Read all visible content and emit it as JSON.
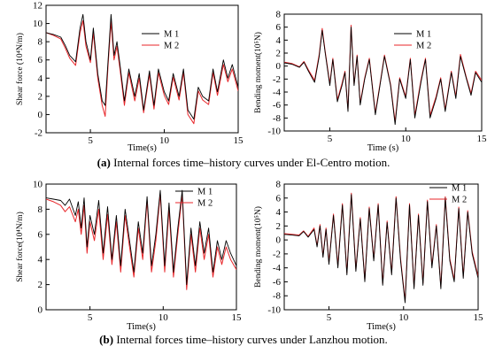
{
  "captions": {
    "a": {
      "label": "(a)",
      "text": " Internal forces time–history curves under El-Centro motion."
    },
    "b": {
      "label": "(b)",
      "text": " Internal forces time–history curves under Lanzhou motion."
    }
  },
  "colors": {
    "M1": "#000000",
    "M2": "#e8262a"
  },
  "chart_data": [
    {
      "id": "elcentro-shear",
      "type": "line",
      "title": "",
      "xlabel": "Time(s)",
      "ylabel": "Shear force (10⁴N/m)",
      "xlim": [
        2,
        15
      ],
      "ylim": [
        -2,
        12
      ],
      "xticks": [
        5,
        10,
        15
      ],
      "yticks": [
        -2,
        0,
        2,
        4,
        6,
        8,
        10,
        12
      ],
      "legend_position": "top-right",
      "grid": false,
      "series": [
        {
          "name": "M 1",
          "x": [
            2,
            2.5,
            3,
            3.3,
            3.6,
            4,
            4.3,
            4.5,
            4.7,
            5,
            5.2,
            5.5,
            5.8,
            6,
            6.2,
            6.4,
            6.6,
            6.8,
            7,
            7.3,
            7.6,
            8,
            8.3,
            8.6,
            9,
            9.3,
            9.6,
            10,
            10.3,
            10.6,
            11,
            11.3,
            11.6,
            12,
            12.3,
            12.6,
            13,
            13.3,
            13.6,
            14,
            14.3,
            14.6,
            15
          ],
          "y": [
            9,
            8.8,
            8.5,
            7.6,
            6.5,
            5.8,
            9.5,
            11,
            8,
            6,
            9.5,
            4.5,
            1.5,
            1,
            6,
            11,
            6.5,
            8,
            5.5,
            1.5,
            5,
            2,
            4.5,
            0.5,
            4.8,
            1,
            5,
            2.5,
            1.5,
            4.5,
            2,
            5,
            0.5,
            -0.5,
            3,
            2,
            1.5,
            5,
            2.5,
            6,
            4,
            5.5,
            3
          ]
        },
        {
          "name": "M 2",
          "x": [
            2,
            2.5,
            3,
            3.3,
            3.6,
            4,
            4.3,
            4.5,
            4.7,
            5,
            5.2,
            5.5,
            5.8,
            6,
            6.2,
            6.4,
            6.6,
            6.8,
            7,
            7.3,
            7.6,
            8,
            8.3,
            8.6,
            9,
            9.3,
            9.6,
            10,
            10.3,
            10.6,
            11,
            11.3,
            11.6,
            12,
            12.3,
            12.6,
            13,
            13.3,
            13.6,
            14,
            14.3,
            14.6,
            15
          ],
          "y": [
            9,
            8.7,
            8.3,
            7.3,
            6.2,
            5.4,
            9,
            10.3,
            7.5,
            5.7,
            9,
            4,
            1,
            -0.2,
            5.5,
            10.2,
            6,
            7.5,
            5,
            1,
            4.6,
            1.5,
            4,
            0.2,
            4.4,
            0.6,
            4.6,
            2.1,
            1.1,
            4.1,
            1.6,
            4.6,
            0,
            -1,
            2.6,
            1.6,
            1.1,
            4.6,
            2.1,
            5.5,
            3.6,
            5,
            2.6
          ]
        }
      ]
    },
    {
      "id": "elcentro-moment",
      "type": "line",
      "title": "",
      "xlabel": "Time (s)",
      "ylabel": "Bending moment(10⁵N)",
      "xlim": [
        2,
        15
      ],
      "ylim": [
        -10,
        8
      ],
      "xticks": [
        5,
        10,
        15
      ],
      "yticks": [
        -10,
        -8,
        -6,
        -4,
        -2,
        0,
        2,
        4,
        6,
        8
      ],
      "legend_position": "top-right",
      "grid": false,
      "series": [
        {
          "name": "M 1",
          "x": [
            2,
            2.5,
            3,
            3.3,
            3.6,
            4,
            4.3,
            4.5,
            4.7,
            5,
            5.2,
            5.5,
            5.8,
            6,
            6.2,
            6.4,
            6.6,
            6.8,
            7,
            7.3,
            7.6,
            8,
            8.3,
            8.6,
            9,
            9.3,
            9.6,
            10,
            10.3,
            10.6,
            11,
            11.3,
            11.6,
            12,
            12.3,
            12.6,
            13,
            13.3,
            13.6,
            14,
            14.3,
            14.6,
            15
          ],
          "y": [
            0.5,
            0.3,
            -0.2,
            0.6,
            -0.8,
            -2.5,
            1.5,
            5.5,
            2,
            -3,
            1,
            -5.5,
            -3,
            -1,
            -7,
            6,
            -3,
            1.5,
            -6,
            -2,
            1,
            -7.5,
            -3,
            1.5,
            -3,
            -9,
            -2,
            -5,
            1,
            -8,
            -2.5,
            1,
            -8,
            -5,
            -2,
            -7,
            -1,
            -5,
            1.5,
            -2,
            -4.5,
            -1,
            -2.5
          ]
        },
        {
          "name": "M 2",
          "x": [
            2,
            2.5,
            3,
            3.3,
            3.6,
            4,
            4.3,
            4.5,
            4.7,
            5,
            5.2,
            5.5,
            5.8,
            6,
            6.2,
            6.4,
            6.6,
            6.8,
            7,
            7.3,
            7.6,
            8,
            8.3,
            8.6,
            9,
            9.3,
            9.6,
            10,
            10.3,
            10.6,
            11,
            11.3,
            11.6,
            12,
            12.3,
            12.6,
            13,
            13.3,
            13.6,
            14,
            14.3,
            14.6,
            15
          ],
          "y": [
            0.6,
            0.4,
            -0.1,
            0.7,
            -0.6,
            -2.2,
            1.8,
            5.8,
            2.2,
            -2.7,
            1.2,
            -5.2,
            -2.7,
            -0.8,
            -6.7,
            6.3,
            -2.8,
            1.7,
            -5.7,
            -1.8,
            1.2,
            -7.2,
            -2.8,
            1.7,
            -2.8,
            -8.6,
            -1.8,
            -4.7,
            1.2,
            -7.6,
            -2.2,
            1.2,
            -7.6,
            -4.7,
            -1.8,
            -6.7,
            -0.8,
            -4.7,
            1.8,
            -1.8,
            -4.2,
            -0.8,
            -2.2
          ]
        }
      ]
    },
    {
      "id": "lanzhou-shear",
      "type": "line",
      "title": "",
      "xlabel": "Time(s)",
      "ylabel": "Shear force(10⁴N/m)",
      "xlim": [
        2,
        15
      ],
      "ylim": [
        0,
        10
      ],
      "xticks": [
        5,
        10,
        15
      ],
      "yticks": [
        0,
        2,
        4,
        6,
        8,
        10
      ],
      "legend_position": "top-right",
      "grid": false,
      "series": [
        {
          "name": "M 1",
          "x": [
            2,
            2.5,
            3,
            3.3,
            3.6,
            4,
            4.2,
            4.4,
            4.6,
            4.8,
            5,
            5.3,
            5.6,
            5.9,
            6.2,
            6.5,
            6.8,
            7.1,
            7.4,
            7.7,
            8,
            8.3,
            8.6,
            8.9,
            9.2,
            9.5,
            9.8,
            10.1,
            10.4,
            10.7,
            11,
            11.3,
            11.6,
            11.9,
            12.2,
            12.5,
            12.8,
            13.1,
            13.4,
            13.7,
            14,
            14.3,
            14.6,
            15
          ],
          "y": [
            8.9,
            8.8,
            8.7,
            8.3,
            8.8,
            7.5,
            8.6,
            6.5,
            8.9,
            5,
            7.5,
            6,
            8.7,
            4.5,
            8.2,
            4,
            7.5,
            3.5,
            8,
            5.5,
            3,
            7,
            4.5,
            9,
            3.5,
            6,
            9.5,
            3.5,
            8.5,
            3,
            6.5,
            9.5,
            2,
            6.5,
            3.5,
            7,
            4.5,
            6.5,
            3,
            5.5,
            4,
            5.5,
            4.5,
            3.5
          ]
        },
        {
          "name": "M 2",
          "x": [
            2,
            2.5,
            3,
            3.3,
            3.6,
            4,
            4.2,
            4.4,
            4.6,
            4.8,
            5,
            5.3,
            5.6,
            5.9,
            6.2,
            6.5,
            6.8,
            7.1,
            7.4,
            7.7,
            8,
            8.3,
            8.6,
            8.9,
            9.2,
            9.5,
            9.8,
            10.1,
            10.4,
            10.7,
            11,
            11.3,
            11.6,
            11.9,
            12.2,
            12.5,
            12.8,
            13.1,
            13.4,
            13.7,
            14,
            14.3,
            14.6,
            15
          ],
          "y": [
            8.8,
            8.6,
            8.3,
            7.8,
            8.2,
            7,
            8,
            6,
            8.3,
            4.5,
            7,
            5.5,
            8,
            4,
            7.6,
            3.6,
            7,
            3,
            7.5,
            5,
            2.6,
            6.5,
            4,
            8.7,
            3,
            5.5,
            9.2,
            3,
            8,
            2.6,
            6,
            9.2,
            1.6,
            6,
            3,
            6.5,
            4,
            6,
            2.6,
            5,
            3.6,
            5,
            4,
            3.2
          ]
        }
      ]
    },
    {
      "id": "lanzhou-moment",
      "type": "line",
      "title": "",
      "xlabel": "Time(s)",
      "ylabel": "Bending moment(10⁵N)",
      "xlim": [
        2,
        15
      ],
      "ylim": [
        -10,
        8
      ],
      "xticks": [
        5,
        10,
        15
      ],
      "yticks": [
        -10,
        -8,
        -6,
        -4,
        -2,
        0,
        2,
        4,
        6,
        8
      ],
      "legend_position": "top-right",
      "grid": false,
      "series": [
        {
          "name": "M 1",
          "x": [
            2,
            2.5,
            3,
            3.3,
            3.6,
            4,
            4.2,
            4.4,
            4.6,
            4.8,
            5,
            5.3,
            5.6,
            5.9,
            6.2,
            6.5,
            6.8,
            7.1,
            7.4,
            7.7,
            8,
            8.3,
            8.6,
            8.9,
            9.2,
            9.5,
            9.8,
            10.1,
            10.4,
            10.7,
            11,
            11.3,
            11.6,
            11.9,
            12.2,
            12.5,
            12.8,
            13.1,
            13.4,
            13.7,
            14,
            14.3,
            14.6,
            15
          ],
          "y": [
            0.8,
            0.7,
            0.6,
            1.2,
            0.4,
            1.5,
            -1,
            2,
            -2.5,
            1.5,
            -3.5,
            3.5,
            -4,
            5,
            -5,
            6.5,
            -4.5,
            3,
            -6,
            4.5,
            -3,
            5,
            -6.5,
            2.5,
            -5,
            6,
            -3,
            -9,
            5,
            -7,
            3.5,
            -6.5,
            5.5,
            -4,
            2,
            -7,
            6,
            -3,
            -6,
            4.5,
            -5.5,
            4,
            -2,
            -5.5
          ]
        },
        {
          "name": "M 2",
          "x": [
            2,
            2.5,
            3,
            3.3,
            3.6,
            4,
            4.2,
            4.4,
            4.6,
            4.8,
            5,
            5.3,
            5.6,
            5.9,
            6.2,
            6.5,
            6.8,
            7.1,
            7.4,
            7.7,
            8,
            8.3,
            8.6,
            8.9,
            9.2,
            9.5,
            9.8,
            10.1,
            10.4,
            10.7,
            11,
            11.3,
            11.6,
            11.9,
            12.2,
            12.5,
            12.8,
            13.1,
            13.4,
            13.7,
            14,
            14.3,
            14.6,
            15
          ],
          "y": [
            0.9,
            0.8,
            0.7,
            1.3,
            0.5,
            1.7,
            -0.8,
            2.2,
            -2.3,
            1.7,
            -3.2,
            3.7,
            -3.7,
            5.2,
            -4.7,
            6.7,
            -4.2,
            3.2,
            -5.7,
            4.7,
            -2.7,
            5.2,
            -6.2,
            2.7,
            -4.7,
            6.2,
            -2.7,
            -8.7,
            5.2,
            -6.7,
            3.7,
            -6.2,
            5.7,
            -3.7,
            2.2,
            -6.7,
            6.2,
            -2.7,
            -5.7,
            4.7,
            -5.2,
            4.2,
            -1.7,
            -5.2
          ]
        }
      ]
    }
  ]
}
